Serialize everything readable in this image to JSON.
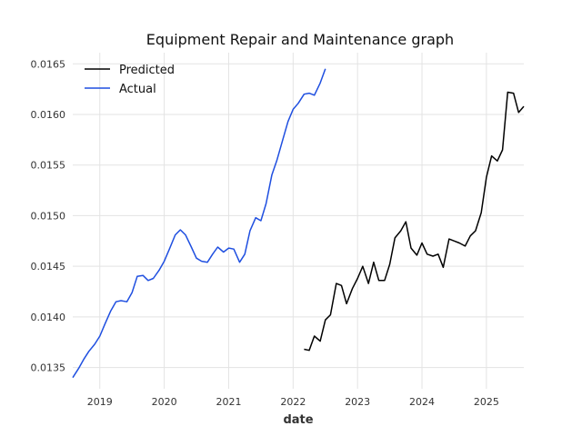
{
  "chart_data": {
    "type": "line",
    "title": "Equipment Repair and Maintenance graph",
    "xlabel": "date",
    "ylabel": "",
    "xlim": [
      2018.58,
      2025.58
    ],
    "ylim": [
      0.01329,
      0.01661
    ],
    "x_ticks": [
      2019,
      2020,
      2021,
      2022,
      2023,
      2024,
      2025
    ],
    "y_ticks": [
      0.0135,
      0.014,
      0.0145,
      0.015,
      0.0155,
      0.016,
      0.0165
    ],
    "grid": true,
    "legend_position": "top-left",
    "series": [
      {
        "name": "Predicted",
        "color": "#000000",
        "x": [
          2022.17,
          2022.25,
          2022.33,
          2022.42,
          2022.5,
          2022.58,
          2022.67,
          2022.75,
          2022.83,
          2022.92,
          2023.0,
          2023.08,
          2023.17,
          2023.25,
          2023.33,
          2023.42,
          2023.5,
          2023.58,
          2023.67,
          2023.75,
          2023.83,
          2023.92,
          2024.0,
          2024.08,
          2024.17,
          2024.25,
          2024.33,
          2024.42,
          2024.5,
          2024.58,
          2024.67,
          2024.75,
          2024.83,
          2024.92,
          2025.0,
          2025.08,
          2025.17,
          2025.25,
          2025.33,
          2025.42,
          2025.5,
          2025.58
        ],
        "y": [
          0.01368,
          0.01367,
          0.01381,
          0.01376,
          0.01397,
          0.01402,
          0.01433,
          0.01431,
          0.01413,
          0.01428,
          0.01438,
          0.0145,
          0.01433,
          0.01454,
          0.01436,
          0.01436,
          0.01452,
          0.01478,
          0.01485,
          0.01494,
          0.01468,
          0.01461,
          0.01473,
          0.01462,
          0.0146,
          0.01462,
          0.01449,
          0.01477,
          0.01475,
          0.01473,
          0.0147,
          0.0148,
          0.01485,
          0.01503,
          0.01538,
          0.01559,
          0.01554,
          0.01565,
          0.01622,
          0.01621,
          0.01602,
          0.01608
        ]
      },
      {
        "name": "Actual",
        "color": "#1f4fe0",
        "x": [
          2018.58,
          2018.67,
          2018.75,
          2018.83,
          2018.92,
          2019.0,
          2019.08,
          2019.17,
          2019.25,
          2019.33,
          2019.42,
          2019.5,
          2019.58,
          2019.67,
          2019.75,
          2019.83,
          2019.92,
          2020.0,
          2020.08,
          2020.17,
          2020.25,
          2020.33,
          2020.42,
          2020.5,
          2020.58,
          2020.67,
          2020.75,
          2020.83,
          2020.92,
          2021.0,
          2021.08,
          2021.17,
          2021.25,
          2021.33,
          2021.42,
          2021.5,
          2021.58,
          2021.67,
          2021.75,
          2021.83,
          2021.92,
          2022.0,
          2022.08,
          2022.17,
          2022.25,
          2022.33,
          2022.42,
          2022.5
        ],
        "y": [
          0.0134,
          0.01349,
          0.01358,
          0.01366,
          0.01373,
          0.01381,
          0.01393,
          0.01406,
          0.01415,
          0.01416,
          0.01415,
          0.01424,
          0.0144,
          0.01441,
          0.01436,
          0.01438,
          0.01446,
          0.01455,
          0.01467,
          0.01481,
          0.01486,
          0.01481,
          0.01469,
          0.01458,
          0.01455,
          0.01454,
          0.01462,
          0.01469,
          0.01464,
          0.01468,
          0.01467,
          0.01454,
          0.01462,
          0.01485,
          0.01498,
          0.01495,
          0.01512,
          0.0154,
          0.01555,
          0.01573,
          0.01593,
          0.01605,
          0.01611,
          0.0162,
          0.01621,
          0.01619,
          0.01631,
          0.01645
        ]
      }
    ]
  }
}
